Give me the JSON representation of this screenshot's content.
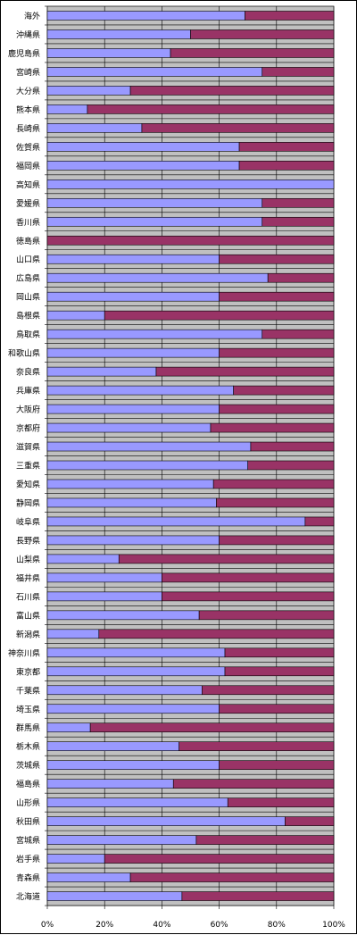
{
  "chart_data": {
    "type": "bar",
    "orientation": "horizontal",
    "stacked": "percent",
    "categories": [
      "海外",
      "沖縄県",
      "鹿児島県",
      "宮崎県",
      "大分県",
      "熊本県",
      "長崎県",
      "佐賀県",
      "福岡県",
      "高知県",
      "愛媛県",
      "香川県",
      "徳島県",
      "山口県",
      "広島県",
      "岡山県",
      "島根県",
      "鳥取県",
      "和歌山県",
      "奈良県",
      "兵庫県",
      "大阪府",
      "京都府",
      "滋賀県",
      "三重県",
      "愛知県",
      "静岡県",
      "岐阜県",
      "長野県",
      "山梨県",
      "福井県",
      "石川県",
      "富山県",
      "新潟県",
      "神奈川県",
      "東京都",
      "千葉県",
      "埼玉県",
      "群馬県",
      "栃木県",
      "茨城県",
      "福島県",
      "山形県",
      "秋田県",
      "宮城県",
      "岩手県",
      "青森県",
      "北海道"
    ],
    "series": [
      {
        "color": "#9999ff",
        "values": [
          0.69,
          0.5,
          0.43,
          0.75,
          0.29,
          0.14,
          0.33,
          0.67,
          0.67,
          1.0,
          0.75,
          0.75,
          0.0,
          0.6,
          0.77,
          0.6,
          0.2,
          0.75,
          0.6,
          0.38,
          0.65,
          0.6,
          0.57,
          0.71,
          0.7,
          0.58,
          0.59,
          0.9,
          0.6,
          0.25,
          0.4,
          0.4,
          0.53,
          0.18,
          0.62,
          0.62,
          0.54,
          0.6,
          0.15,
          0.46,
          0.6,
          0.44,
          0.63,
          0.83,
          0.52,
          0.2,
          0.29,
          0.47
        ]
      },
      {
        "color": "#993366",
        "values": [
          0.31,
          0.5,
          0.57,
          0.25,
          0.71,
          0.86,
          0.67,
          0.33,
          0.33,
          0.0,
          0.25,
          0.25,
          1.0,
          0.4,
          0.23,
          0.4,
          0.8,
          0.25,
          0.4,
          0.62,
          0.35,
          0.4,
          0.43,
          0.29,
          0.3,
          0.42,
          0.41,
          0.1,
          0.4,
          0.75,
          0.6,
          0.6,
          0.47,
          0.82,
          0.38,
          0.38,
          0.46,
          0.4,
          0.85,
          0.54,
          0.4,
          0.56,
          0.37,
          0.17,
          0.48,
          0.8,
          0.71,
          0.53
        ]
      }
    ],
    "x_ticks": [
      "0%",
      "20%",
      "40%",
      "60%",
      "80%",
      "100%"
    ],
    "xlim": [
      0,
      1
    ],
    "plot_background": "#c0c0c0",
    "grid": true,
    "legend": false
  }
}
